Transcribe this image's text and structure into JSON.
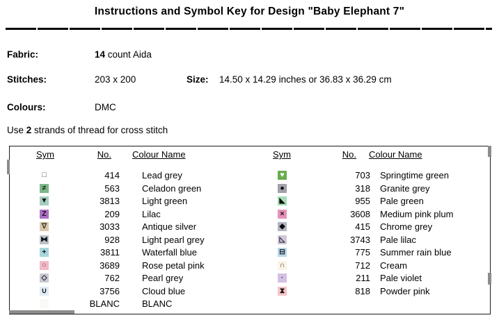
{
  "title": "Instructions and Symbol Key for Design \"Baby Elephant 7\"",
  "info": {
    "fabric_label": "Fabric:",
    "fabric_bold": "14",
    "fabric_rest": " count Aida",
    "stitches_label": "Stitches:",
    "stitches_value": "203 x 200",
    "size_label": "Size:",
    "size_value": "14.50 x 14.29 inches or 36.83 x 36.29 cm",
    "colours_label": "Colours:",
    "colours_value": "DMC",
    "strands_prefix": "Use ",
    "strands_bold": "2",
    "strands_suffix": " strands of thread for cross stitch"
  },
  "key": {
    "headers": {
      "sym": "Sym",
      "no": "No.",
      "name": "Colour Name"
    },
    "left": [
      {
        "sym_name": "square-outline",
        "glyph": "□",
        "bg": "#ffffff",
        "fg": "#434a56",
        "no": "414",
        "name": "Lead grey"
      },
      {
        "sym_name": "not-equal",
        "glyph": "≠",
        "bg": "#7db889",
        "fg": "#1f2a22",
        "no": "563",
        "name": "Celadon green"
      },
      {
        "sym_name": "triangle-down-filled",
        "glyph": "▼",
        "bg": "#a6cdbd",
        "fg": "#10151a",
        "no": "3813",
        "name": "Light green"
      },
      {
        "sym_name": "letter-z",
        "glyph": "Z",
        "bg": "#ad6fc2",
        "fg": "#15101a",
        "no": "209",
        "name": "Lilac"
      },
      {
        "sym_name": "triangle-down-outline",
        "glyph": "∇",
        "bg": "#d9c8ac",
        "fg": "#3f3a30",
        "no": "3033",
        "name": "Antique silver"
      },
      {
        "sym_name": "bowtie-filled",
        "glyph": "⧓",
        "bg": "#bac2c7",
        "fg": "#10151a",
        "no": "928",
        "name": "Light pearl grey"
      },
      {
        "sym_name": "plus",
        "glyph": "+",
        "bg": "#a6d7dd",
        "fg": "#0e1418",
        "no": "3811",
        "name": "Waterfall blue"
      },
      {
        "sym_name": "circle-outline",
        "glyph": "○",
        "bg": "#f2bac7",
        "fg": "#8d4455",
        "no": "3689",
        "name": "Rose petal pink"
      },
      {
        "sym_name": "diamond-outline",
        "glyph": "◇",
        "bg": "#c9cad4",
        "fg": "#1a1a22",
        "no": "762",
        "name": "Pearl grey"
      },
      {
        "sym_name": "union-u",
        "glyph": "∪",
        "bg": "#e1edf5",
        "fg": "#10151a",
        "no": "3756",
        "name": "Cloud blue"
      },
      {
        "sym_name": "blank",
        "glyph": "",
        "bg": "#f9f9f6",
        "fg": "#000000",
        "no": "BLANC",
        "name": "BLANC"
      }
    ],
    "right": [
      {
        "sym_name": "heart-white",
        "glyph": "♥",
        "bg": "#68ad4d",
        "fg": "#ffffff",
        "no": "703",
        "name": "Springtime green"
      },
      {
        "sym_name": "circle-filled",
        "glyph": "●",
        "bg": "#a0a1ab",
        "fg": "#0a0a0a",
        "no": "318",
        "name": "Granite grey"
      },
      {
        "sym_name": "triangle-lower-left-filled",
        "glyph": "◣",
        "bg": "#a7ddb7",
        "fg": "#0a0a0a",
        "no": "955",
        "name": "Pale green"
      },
      {
        "sym_name": "cross-x",
        "glyph": "×",
        "bg": "#e692ba",
        "fg": "#140e14",
        "no": "3608",
        "name": "Medium pink plum"
      },
      {
        "sym_name": "diamond-filled",
        "glyph": "◆",
        "bg": "#b1b5bf",
        "fg": "#0a0a0a",
        "no": "415",
        "name": "Chrome grey"
      },
      {
        "sym_name": "triangle-lower-left-outline",
        "glyph": "◺",
        "bg": "#d2c8da",
        "fg": "#241c2e",
        "no": "3743",
        "name": "Pale lilac"
      },
      {
        "sym_name": "squared-bar",
        "glyph": "⊟",
        "bg": "#bcd7eb",
        "fg": "#18222e",
        "no": "775",
        "name": "Summer rain blue"
      },
      {
        "sym_name": "cap-arch",
        "glyph": "∩",
        "bg": "#f8f4e6",
        "fg": "#53422e",
        "no": "712",
        "name": "Cream"
      },
      {
        "sym_name": "small-dot",
        "glyph": "·",
        "bg": "#d3c0e2",
        "fg": "#3e3050",
        "no": "211",
        "name": "Pale violet"
      },
      {
        "sym_name": "hourglass",
        "glyph": "⧗",
        "bg": "#f5c5c9",
        "fg": "#1c1016",
        "no": "818",
        "name": "Powder pink"
      }
    ]
  }
}
